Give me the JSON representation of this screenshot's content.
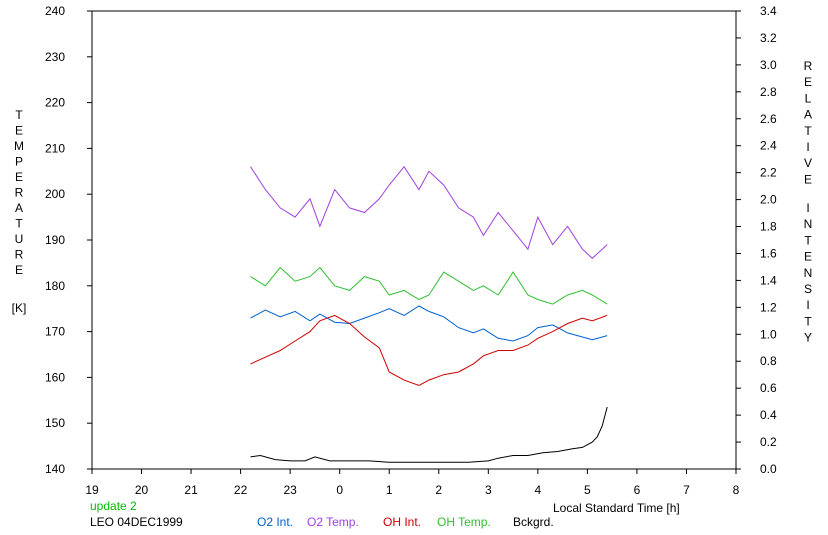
{
  "chart_data": {
    "type": "line",
    "left_axis": {
      "label_letters": [
        "T",
        "E",
        "M",
        "P",
        "E",
        "R",
        "A",
        "T",
        "U",
        "R",
        "E"
      ],
      "unit": "[K]",
      "ylim": [
        140,
        240
      ],
      "ticks": [
        "140",
        "150",
        "160",
        "170",
        "180",
        "190",
        "200",
        "210",
        "220",
        "230",
        "240"
      ]
    },
    "right_axis": {
      "label_letters": [
        "R",
        "E",
        "L",
        "A",
        "T",
        "I",
        "V",
        "E"
      ],
      "label_letters_2": [
        "I",
        "N",
        "T",
        "E",
        "N",
        "S",
        "I",
        "T",
        "Y"
      ],
      "ylim": [
        0.0,
        3.4
      ],
      "ticks": [
        "0.0",
        "0.2",
        "0.4",
        "0.6",
        "0.8",
        "1.0",
        "1.2",
        "1.4",
        "1.6",
        "1.8",
        "2.0",
        "2.2",
        "2.4",
        "2.6",
        "2.8",
        "3.0",
        "3.2",
        "3.4"
      ]
    },
    "x_axis": {
      "label": "Local Standard Time [h]",
      "xlim": [
        19,
        32
      ],
      "ticks": [
        "19",
        "20",
        "21",
        "22",
        "23",
        "0",
        "1",
        "2",
        "3",
        "4",
        "5",
        "6",
        "7",
        "8"
      ]
    },
    "info": {
      "status": "update 2",
      "station": "LEO 04DEC1999",
      "status_color": "#00c000"
    },
    "series": [
      {
        "name": "O2 Int.",
        "axis": "right",
        "color": "#0060d0",
        "x": [
          22.2,
          22.5,
          22.8,
          23.1,
          23.4,
          23.6,
          23.9,
          24.2,
          24.5,
          24.8,
          25.0,
          25.3,
          25.6,
          25.8,
          26.1,
          26.4,
          26.7,
          26.9,
          27.2,
          27.5,
          27.8,
          28.0,
          28.3,
          28.6,
          28.9,
          29.1,
          29.4
        ],
        "y": [
          1.12,
          1.18,
          1.13,
          1.17,
          1.1,
          1.15,
          1.09,
          1.08,
          1.12,
          1.16,
          1.19,
          1.14,
          1.21,
          1.17,
          1.13,
          1.05,
          1.01,
          1.04,
          0.97,
          0.95,
          0.99,
          1.05,
          1.07,
          1.01,
          0.98,
          0.96,
          0.99
        ]
      },
      {
        "name": "O2 Temp.",
        "axis": "left",
        "color": "#a040e0",
        "x": [
          22.2,
          22.5,
          22.8,
          23.1,
          23.4,
          23.6,
          23.9,
          24.2,
          24.5,
          24.8,
          25.0,
          25.3,
          25.6,
          25.8,
          26.1,
          26.4,
          26.7,
          26.9,
          27.2,
          27.5,
          27.8,
          28.0,
          28.3,
          28.6,
          28.9,
          29.1,
          29.4
        ],
        "y": [
          206,
          201,
          197,
          195,
          199,
          193,
          201,
          197,
          196,
          199,
          202,
          206,
          201,
          205,
          202,
          197,
          195,
          191,
          196,
          192,
          188,
          195,
          189,
          193,
          188,
          186,
          189
        ]
      },
      {
        "name": "OH Int.",
        "axis": "right",
        "color": "#d00000",
        "x": [
          22.2,
          22.5,
          22.8,
          23.1,
          23.4,
          23.6,
          23.9,
          24.2,
          24.5,
          24.8,
          25.0,
          25.3,
          25.6,
          25.8,
          26.1,
          26.4,
          26.7,
          26.9,
          27.2,
          27.5,
          27.8,
          28.0,
          28.3,
          28.6,
          28.9,
          29.1,
          29.4
        ],
        "y": [
          0.78,
          0.83,
          0.88,
          0.95,
          1.02,
          1.1,
          1.14,
          1.08,
          0.98,
          0.9,
          0.72,
          0.66,
          0.62,
          0.66,
          0.7,
          0.72,
          0.78,
          0.84,
          0.88,
          0.88,
          0.92,
          0.97,
          1.02,
          1.08,
          1.12,
          1.1,
          1.14
        ]
      },
      {
        "name": "OH Temp.",
        "axis": "left",
        "color": "#30c030",
        "x": [
          22.2,
          22.5,
          22.8,
          23.1,
          23.4,
          23.6,
          23.9,
          24.2,
          24.5,
          24.8,
          25.0,
          25.3,
          25.6,
          25.8,
          26.1,
          26.4,
          26.7,
          26.9,
          27.2,
          27.5,
          27.8,
          28.0,
          28.3,
          28.6,
          28.9,
          29.1,
          29.4
        ],
        "y": [
          182,
          180,
          184,
          181,
          182,
          184,
          180,
          179,
          182,
          181,
          178,
          179,
          177,
          178,
          183,
          181,
          179,
          180,
          178,
          183,
          178,
          177,
          176,
          178,
          179,
          178,
          176
        ]
      },
      {
        "name": "Bckgrd.",
        "axis": "right",
        "color": "#000000",
        "x": [
          22.2,
          22.4,
          22.7,
          23.0,
          23.3,
          23.5,
          23.8,
          24.2,
          24.6,
          25.0,
          25.4,
          25.8,
          26.2,
          26.6,
          27.0,
          27.2,
          27.5,
          27.8,
          28.1,
          28.4,
          28.7,
          28.9,
          29.1,
          29.2,
          29.3,
          29.4
        ],
        "y": [
          0.09,
          0.1,
          0.07,
          0.06,
          0.06,
          0.09,
          0.06,
          0.06,
          0.06,
          0.05,
          0.05,
          0.05,
          0.05,
          0.05,
          0.06,
          0.08,
          0.1,
          0.1,
          0.12,
          0.13,
          0.15,
          0.16,
          0.2,
          0.24,
          0.32,
          0.46
        ]
      }
    ]
  }
}
